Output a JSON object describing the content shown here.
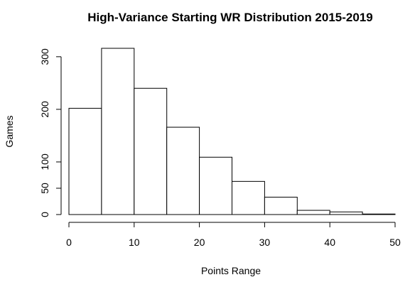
{
  "chart_data": {
    "type": "bar",
    "title": "High-Variance Starting WR Distribution 2015-2019",
    "xlabel": "Points Range",
    "ylabel": "Games",
    "bins": [
      {
        "start": 0,
        "end": 5,
        "value": 202
      },
      {
        "start": 5,
        "end": 10,
        "value": 316
      },
      {
        "start": 10,
        "end": 15,
        "value": 240
      },
      {
        "start": 15,
        "end": 20,
        "value": 166
      },
      {
        "start": 20,
        "end": 25,
        "value": 109
      },
      {
        "start": 25,
        "end": 30,
        "value": 63
      },
      {
        "start": 30,
        "end": 35,
        "value": 33
      },
      {
        "start": 35,
        "end": 40,
        "value": 8
      },
      {
        "start": 40,
        "end": 45,
        "value": 5
      },
      {
        "start": 45,
        "end": 50,
        "value": 1
      }
    ],
    "xlim": [
      0,
      50
    ],
    "ylim": [
      0,
      316
    ],
    "xticks": [
      0,
      10,
      20,
      30,
      40,
      50
    ],
    "yticks": [
      0,
      50,
      100,
      200,
      300
    ],
    "grid": false
  }
}
